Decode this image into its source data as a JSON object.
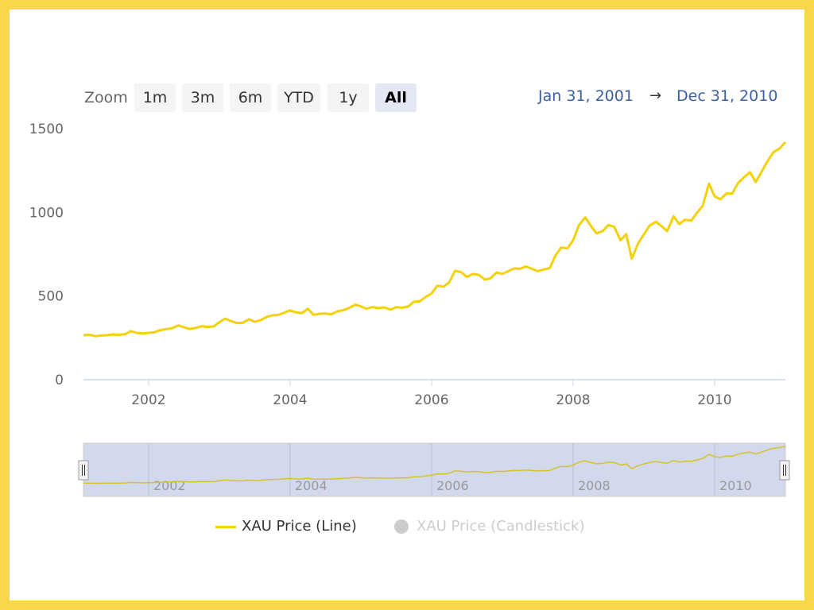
{
  "range_selector": {
    "zoom_label": "Zoom",
    "buttons": [
      "1m",
      "3m",
      "6m",
      "YTD",
      "1y",
      "All"
    ],
    "selected": "All"
  },
  "date_range": {
    "from": "Jan 31, 2001",
    "arrow": "→",
    "to": "Dec 31, 2010"
  },
  "legend": {
    "items": [
      {
        "label": "XAU Price (Line)",
        "active": true
      },
      {
        "label": "XAU Price (Candlestick)",
        "active": false
      }
    ]
  },
  "colors": {
    "line": "#f5d10a",
    "navigator_mask": "#d2d9ec",
    "axis_text": "#666666",
    "date_text": "#3b5fa8"
  },
  "chart_data": {
    "type": "line",
    "title": "",
    "xlabel": "",
    "ylabel": "",
    "ylim": [
      0,
      1500
    ],
    "y_ticks": [
      0,
      500,
      1000,
      1500
    ],
    "x_ticks": [
      "2002",
      "2004",
      "2006",
      "2008",
      "2010"
    ],
    "navigator_ticks": [
      "2002",
      "2004",
      "2006",
      "2008",
      "2010"
    ],
    "grid": false,
    "legend_position": "bottom-center",
    "series": [
      {
        "name": "XAU Price (Line)",
        "x": [
          2001.08,
          2001.17,
          2001.25,
          2001.33,
          2001.42,
          2001.5,
          2001.58,
          2001.67,
          2001.75,
          2001.83,
          2001.92,
          2002.0,
          2002.08,
          2002.17,
          2002.25,
          2002.33,
          2002.42,
          2002.5,
          2002.58,
          2002.67,
          2002.75,
          2002.83,
          2002.92,
          2003.0,
          2003.08,
          2003.17,
          2003.25,
          2003.33,
          2003.42,
          2003.5,
          2003.58,
          2003.67,
          2003.75,
          2003.83,
          2003.92,
          2004.0,
          2004.08,
          2004.17,
          2004.25,
          2004.33,
          2004.42,
          2004.5,
          2004.58,
          2004.67,
          2004.75,
          2004.83,
          2004.92,
          2005.0,
          2005.08,
          2005.17,
          2005.25,
          2005.33,
          2005.42,
          2005.5,
          2005.58,
          2005.67,
          2005.75,
          2005.83,
          2005.92,
          2006.0,
          2006.08,
          2006.17,
          2006.25,
          2006.33,
          2006.42,
          2006.5,
          2006.58,
          2006.67,
          2006.75,
          2006.83,
          2006.92,
          2007.0,
          2007.08,
          2007.17,
          2007.25,
          2007.33,
          2007.42,
          2007.5,
          2007.58,
          2007.67,
          2007.75,
          2007.83,
          2007.92,
          2008.0,
          2008.08,
          2008.17,
          2008.25,
          2008.33,
          2008.42,
          2008.5,
          2008.58,
          2008.67,
          2008.75,
          2008.83,
          2008.92,
          2009.0,
          2009.08,
          2009.17,
          2009.25,
          2009.33,
          2009.42,
          2009.5,
          2009.58,
          2009.67,
          2009.75,
          2009.83,
          2009.92,
          2010.0,
          2010.08,
          2010.17,
          2010.25,
          2010.33,
          2010.42,
          2010.5,
          2010.58,
          2010.67,
          2010.75,
          2010.83,
          2010.92,
          2011.0
        ],
        "values": [
          266,
          268,
          260,
          264,
          266,
          270,
          268,
          272,
          290,
          280,
          276,
          280,
          283,
          296,
          302,
          307,
          324,
          314,
          303,
          309,
          320,
          315,
          318,
          343,
          365,
          350,
          338,
          340,
          361,
          346,
          355,
          375,
          384,
          387,
          400,
          414,
          402,
          398,
          424,
          388,
          394,
          395,
          391,
          408,
          415,
          428,
          448,
          438,
          424,
          434,
          427,
          432,
          418,
          433,
          430,
          437,
          466,
          468,
          495,
          515,
          561,
          556,
          582,
          651,
          642,
          614,
          632,
          626,
          598,
          605,
          641,
          632,
          648,
          665,
          662,
          677,
          662,
          649,
          658,
          667,
          741,
          790,
          785,
          833,
          922,
          970,
          920,
          875,
          888,
          924,
          914,
          833,
          870,
          723,
          816,
          869,
          920,
          944,
          917,
          888,
          977,
          929,
          956,
          951,
          997,
          1038,
          1172,
          1095,
          1078,
          1113,
          1112,
          1175,
          1212,
          1240,
          1181,
          1247,
          1307,
          1359,
          1382,
          1420
        ]
      },
      {
        "name": "XAU Price (Candlestick)",
        "hidden": true
      }
    ]
  }
}
